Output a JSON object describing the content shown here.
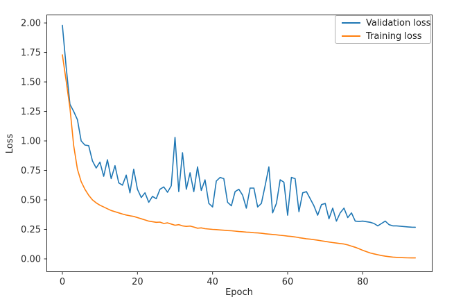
{
  "figure": {
    "background": "#ffffff",
    "text_color": "#262626",
    "spine_color": "#2b2b2b"
  },
  "chart_data": {
    "type": "line",
    "title": "",
    "xlabel": "Epoch",
    "ylabel": "Loss",
    "grid": false,
    "x_start": 0,
    "x_step": 1,
    "xlim": [
      -4.25,
      98.4
    ],
    "ylim": [
      -0.106,
      2.071
    ],
    "xticks": [
      {
        "value": 0,
        "label": "0"
      },
      {
        "value": 20,
        "label": "20"
      },
      {
        "value": 40,
        "label": "40"
      },
      {
        "value": 60,
        "label": "60"
      },
      {
        "value": 80,
        "label": "80"
      }
    ],
    "yticks": [
      {
        "value": 0.0,
        "label": "0.00"
      },
      {
        "value": 0.25,
        "label": "0.25"
      },
      {
        "value": 0.5,
        "label": "0.50"
      },
      {
        "value": 0.75,
        "label": "0.75"
      },
      {
        "value": 1.0,
        "label": "1.00"
      },
      {
        "value": 1.25,
        "label": "1.25"
      },
      {
        "value": 1.5,
        "label": "1.50"
      },
      {
        "value": 1.75,
        "label": "1.75"
      },
      {
        "value": 2.0,
        "label": "2.00"
      }
    ],
    "legend": {
      "location": "upper right"
    },
    "series": [
      {
        "name": "Validation loss",
        "color": "#1f77b4",
        "values": [
          1.98,
          1.63,
          1.31,
          1.25,
          1.18,
          1.0,
          0.965,
          0.96,
          0.83,
          0.77,
          0.82,
          0.7,
          0.84,
          0.68,
          0.79,
          0.645,
          0.625,
          0.71,
          0.56,
          0.76,
          0.59,
          0.52,
          0.56,
          0.48,
          0.53,
          0.51,
          0.59,
          0.61,
          0.565,
          0.62,
          1.03,
          0.57,
          0.9,
          0.59,
          0.73,
          0.57,
          0.78,
          0.58,
          0.67,
          0.47,
          0.44,
          0.66,
          0.69,
          0.68,
          0.48,
          0.45,
          0.57,
          0.59,
          0.54,
          0.43,
          0.6,
          0.6,
          0.44,
          0.47,
          0.62,
          0.78,
          0.39,
          0.47,
          0.67,
          0.65,
          0.37,
          0.69,
          0.68,
          0.4,
          0.56,
          0.57,
          0.51,
          0.45,
          0.37,
          0.46,
          0.47,
          0.34,
          0.43,
          0.32,
          0.39,
          0.43,
          0.35,
          0.39,
          0.32,
          0.317,
          0.32,
          0.315,
          0.31,
          0.3,
          0.28,
          0.3,
          0.32,
          0.29,
          0.28,
          0.28,
          0.277,
          0.274,
          0.271,
          0.269,
          0.268
        ]
      },
      {
        "name": "Training loss",
        "color": "#ff7f0e",
        "values": [
          1.73,
          1.51,
          1.28,
          0.96,
          0.76,
          0.655,
          0.59,
          0.54,
          0.5,
          0.475,
          0.455,
          0.44,
          0.425,
          0.41,
          0.4,
          0.39,
          0.38,
          0.372,
          0.365,
          0.36,
          0.35,
          0.34,
          0.33,
          0.32,
          0.315,
          0.31,
          0.312,
          0.3,
          0.305,
          0.295,
          0.285,
          0.29,
          0.28,
          0.275,
          0.278,
          0.27,
          0.26,
          0.263,
          0.256,
          0.253,
          0.25,
          0.248,
          0.245,
          0.243,
          0.24,
          0.238,
          0.235,
          0.232,
          0.23,
          0.227,
          0.225,
          0.222,
          0.22,
          0.217,
          0.213,
          0.21,
          0.207,
          0.204,
          0.2,
          0.197,
          0.193,
          0.19,
          0.186,
          0.18,
          0.175,
          0.17,
          0.167,
          0.163,
          0.158,
          0.153,
          0.148,
          0.143,
          0.138,
          0.134,
          0.13,
          0.126,
          0.118,
          0.108,
          0.098,
          0.086,
          0.073,
          0.061,
          0.05,
          0.042,
          0.035,
          0.028,
          0.023,
          0.019,
          0.015,
          0.013,
          0.011,
          0.01,
          0.009,
          0.008,
          0.008
        ]
      }
    ]
  }
}
